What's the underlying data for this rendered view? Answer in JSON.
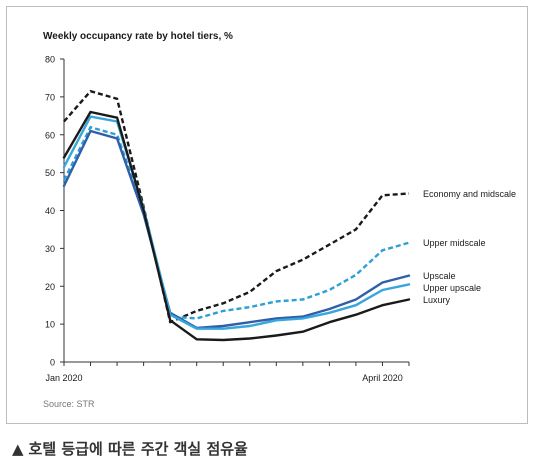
{
  "caption": {
    "marker": "▲",
    "text": "호텔 등급에 따른 주간 객실 점유율"
  },
  "chart_data": {
    "type": "line",
    "title": "Weekly occupancy rate by hotel tiers,  %",
    "source": "Source: STR",
    "xlabel": "",
    "ylabel": "",
    "ylim": [
      0,
      80
    ],
    "yticks": [
      "0",
      "10",
      "20",
      "30",
      "40",
      "50",
      "60",
      "70",
      "80"
    ],
    "grid": false,
    "legend": "right-end labels",
    "x": [
      0,
      1,
      2,
      3,
      4,
      5,
      6,
      7,
      8,
      9,
      10,
      11,
      12,
      13
    ],
    "x_tick_labels": [
      {
        "index": 0,
        "label": "Jan 2020"
      },
      {
        "index": 12,
        "label": "April 2020"
      }
    ],
    "series": [
      {
        "name": "Economy and midscale",
        "color": "#1a1a1a",
        "dash": true,
        "values": [
          63.5,
          71.5,
          69.5,
          41,
          10.5,
          13.5,
          15.5,
          18.5,
          24,
          27,
          31,
          35,
          44,
          44.5
        ]
      },
      {
        "name": "Upper midscale",
        "color": "#2e9fd6",
        "dash": true,
        "values": [
          48,
          62,
          60,
          40,
          12,
          11.5,
          13.5,
          14.5,
          16,
          16.5,
          19,
          23,
          29.5,
          31.5
        ]
      },
      {
        "name": "Upscale",
        "color": "#2f5fa8",
        "dash": false,
        "values": [
          46.5,
          61,
          59,
          39,
          13,
          9,
          9.5,
          10.5,
          11.5,
          12,
          14,
          16.5,
          21,
          22.8
        ]
      },
      {
        "name": "Upper upscale",
        "color": "#37a6dd",
        "dash": false,
        "values": [
          51.5,
          64.8,
          63.5,
          40.5,
          12.5,
          8.8,
          8.8,
          9.5,
          11,
          11.5,
          13,
          15,
          19,
          20.5
        ]
      },
      {
        "name": "Luxury",
        "color": "#1a1a1a",
        "dash": false,
        "values": [
          54,
          66,
          64.5,
          40,
          11,
          6,
          5.8,
          6.2,
          7,
          8,
          10.5,
          12.5,
          15,
          16.5
        ]
      }
    ]
  }
}
